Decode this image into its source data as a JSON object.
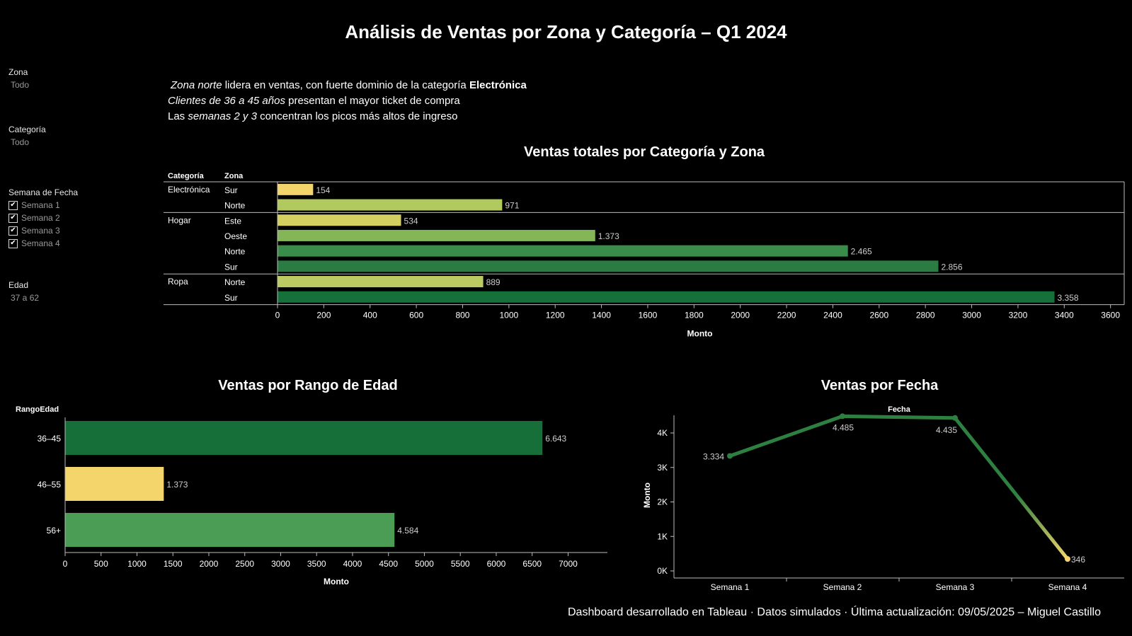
{
  "title": "Análisis de Ventas por Zona y Categoría – Q1 2024",
  "filters": {
    "zona": {
      "label": "Zona",
      "value": "Todo"
    },
    "categoria": {
      "label": "Categoría",
      "value": "Todo"
    },
    "semana": {
      "label": "Semana de Fecha",
      "options": [
        {
          "label": "Semana 1",
          "checked": true
        },
        {
          "label": "Semana 2",
          "checked": true
        },
        {
          "label": "Semana 3",
          "checked": true
        },
        {
          "label": "Semana 4",
          "checked": true
        }
      ]
    },
    "edad": {
      "label": "Edad",
      "value": "37 a 62"
    }
  },
  "insights": [
    [
      {
        "t": "Zona norte",
        "s": "i"
      },
      {
        "t": " lidera en ventas, con fuerte dominio de la categoría ",
        "s": ""
      },
      {
        "t": "Electrónica",
        "s": "b"
      }
    ],
    [
      {
        "t": "Clientes de 36 a 45 años",
        "s": "i"
      },
      {
        "t": " presentan el mayor ticket de compra",
        "s": ""
      }
    ],
    [
      {
        "t": "Las ",
        "s": ""
      },
      {
        "t": "semanas 2 y 3",
        "s": "i"
      },
      {
        "t": " concentran los picos más altos de ingreso",
        "s": ""
      }
    ]
  ],
  "footer": "Dashboard desarrollado en Tableau · Datos simulados · Última actualización: 09/05/2025 – Miguel Castillo",
  "chart_data": [
    {
      "type": "bar",
      "orientation": "horizontal",
      "title": "Ventas totales por Categoría y Zona",
      "row_headers": [
        "Categoría",
        "Zona"
      ],
      "groups": [
        {
          "category": "Electrónica",
          "rows": [
            {
              "zona": "Sur",
              "value": 154,
              "label": "154",
              "color": "#f4d56b"
            },
            {
              "zona": "Norte",
              "value": 971,
              "label": "971",
              "color": "#b2c95f"
            }
          ]
        },
        {
          "category": "Hogar",
          "rows": [
            {
              "zona": "Este",
              "value": 534,
              "label": "534",
              "color": "#d3d061"
            },
            {
              "zona": "Oeste",
              "value": 1373,
              "label": "1.373",
              "color": "#84b658"
            },
            {
              "zona": "Norte",
              "value": 2465,
              "label": "2.465",
              "color": "#3a8c4b"
            },
            {
              "zona": "Sur",
              "value": 2856,
              "label": "2.856",
              "color": "#2b7c42"
            }
          ]
        },
        {
          "category": "Ropa",
          "rows": [
            {
              "zona": "Norte",
              "value": 889,
              "label": "889",
              "color": "#bccb61"
            },
            {
              "zona": "Sur",
              "value": 3358,
              "label": "3.358",
              "color": "#16703a"
            }
          ]
        }
      ],
      "xlim": [
        0,
        3650
      ],
      "xticks": [
        0,
        200,
        400,
        600,
        800,
        1000,
        1200,
        1400,
        1600,
        1800,
        2000,
        2200,
        2400,
        2600,
        2800,
        3000,
        3200,
        3400,
        3600
      ],
      "xlabel": "Monto"
    },
    {
      "type": "bar",
      "orientation": "horizontal",
      "title": "Ventas por Rango de Edad",
      "row_header": "RangoEdad",
      "categories": [
        "36–45",
        "46–55",
        "56+"
      ],
      "values": [
        6643,
        1373,
        4584
      ],
      "labels": [
        "6.643",
        "1.373",
        "4.584"
      ],
      "colors": [
        "#166f38",
        "#f4d56b",
        "#4b9d55"
      ],
      "xlim": [
        0,
        7370
      ],
      "xticks": [
        0,
        500,
        1000,
        1500,
        2000,
        2500,
        3000,
        3500,
        4000,
        4500,
        5000,
        5500,
        6000,
        6500,
        7000
      ],
      "xlabel": "Monto"
    },
    {
      "type": "line",
      "title": "Ventas por Fecha",
      "top_label": "Fecha",
      "x": [
        "Semana 1",
        "Semana 2",
        "Semana 3",
        "Semana 4"
      ],
      "y": [
        3334,
        4485,
        4435,
        346
      ],
      "labels": [
        "3.334",
        "4.485",
        "4.435",
        "346"
      ],
      "ylabel": "Monto",
      "ylim": [
        0,
        4800
      ],
      "yticks": [
        0,
        1000,
        2000,
        3000,
        4000
      ],
      "ytick_labels": [
        "0K",
        "1K",
        "2K",
        "3K",
        "4K"
      ],
      "line_colors": {
        "high": "#2e8040",
        "low": "#f4d56b"
      }
    }
  ]
}
